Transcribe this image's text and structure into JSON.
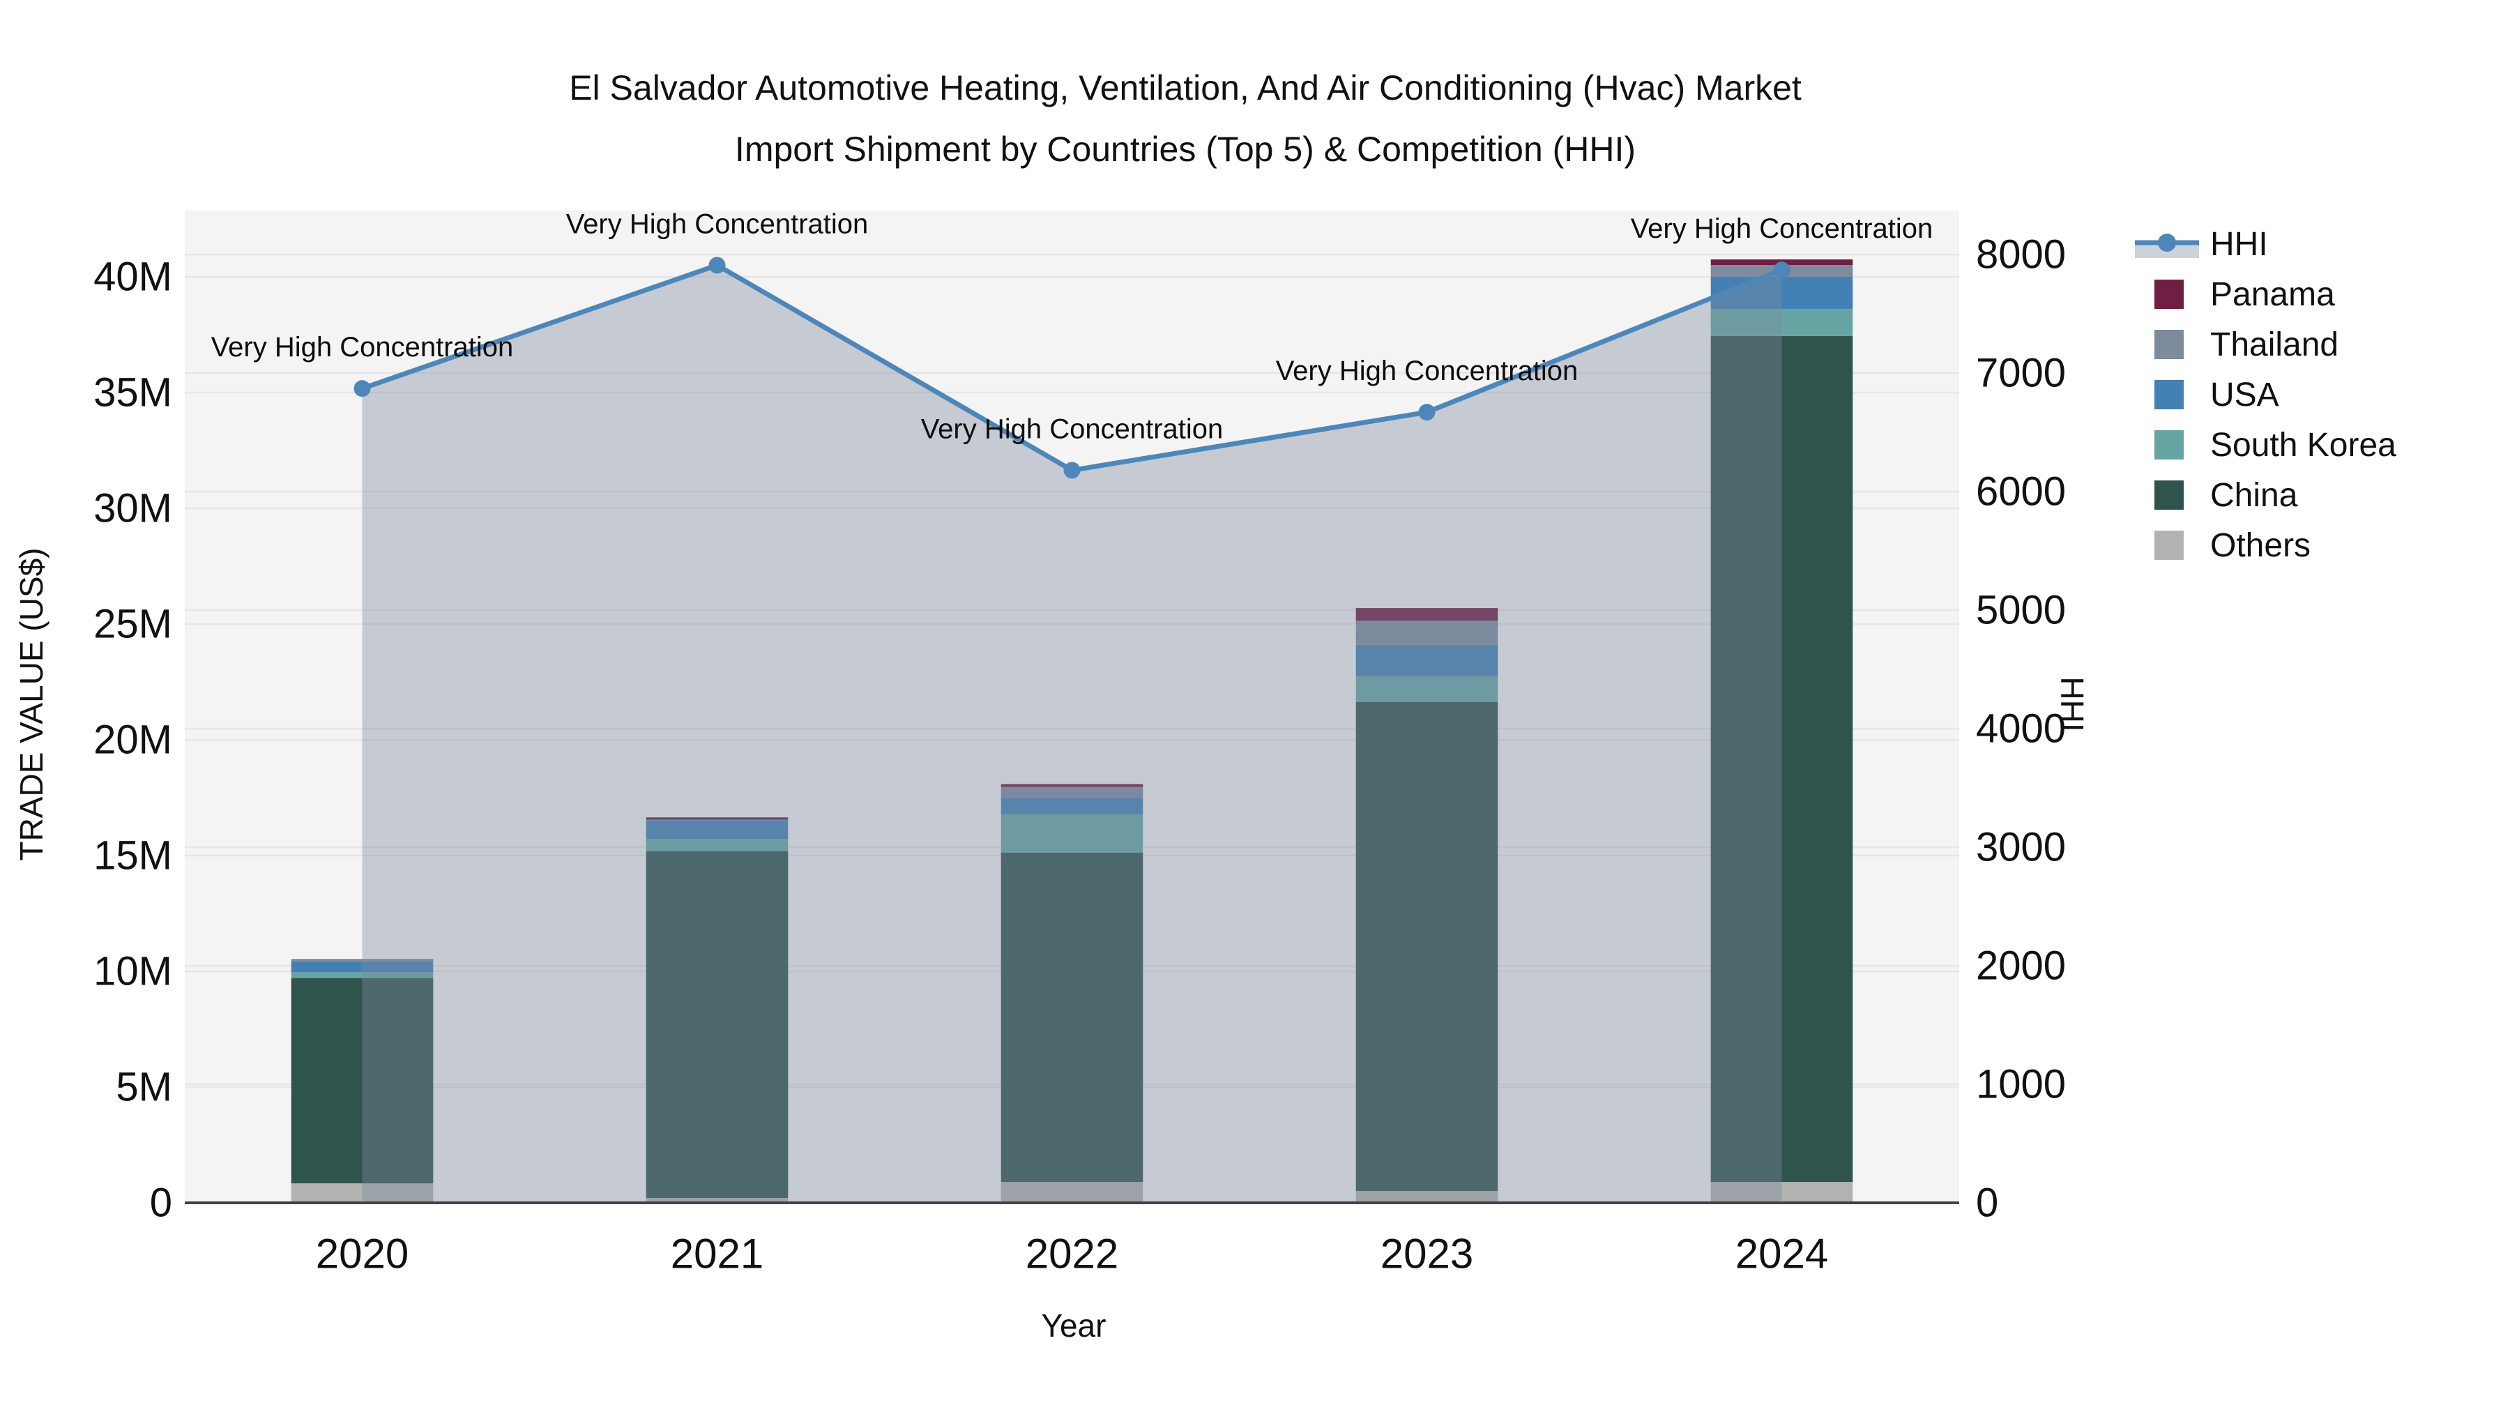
{
  "title": {
    "line1": "El Salvador Automotive Heating, Ventilation, And Air Conditioning (Hvac) Market",
    "line2": "Import Shipment by Countries (Top 5) & Competition (HHI)"
  },
  "chart_data": {
    "type": "combo: stacked bar (trade value) + line with area fill (HHI)",
    "categories": [
      "2020",
      "2021",
      "2022",
      "2023",
      "2024"
    ],
    "bar_series": [
      {
        "name": "Others",
        "color": "#b3b4b2",
        "values_musd": [
          0.84,
          0.21,
          0.9,
          0.51,
          0.9
        ]
      },
      {
        "name": "China",
        "color": "#2f544e",
        "values_musd": [
          8.87,
          14.97,
          14.22,
          21.12,
          36.54
        ]
      },
      {
        "name": "South Korea",
        "color": "#66a5a3",
        "values_musd": [
          0.25,
          0.54,
          1.66,
          1.11,
          1.17
        ]
      },
      {
        "name": "USA",
        "color": "#4381b5",
        "values_musd": [
          0.47,
          0.81,
          0.73,
          1.36,
          1.39
        ]
      },
      {
        "name": "Thailand",
        "color": "#7c8b9d",
        "values_musd": [
          0.05,
          0.02,
          0.45,
          1.05,
          0.51
        ]
      },
      {
        "name": "Panama",
        "color": "#6e1f42",
        "values_musd": [
          0.03,
          0.1,
          0.13,
          0.54,
          0.24
        ]
      }
    ],
    "bar_totals_musd": [
      10.51,
      16.65,
      18.09,
      25.69,
      40.75
    ],
    "line_series": {
      "name": "HHI",
      "color": "#4d87b9",
      "fill_color": "rgba(124,136,158,0.38)",
      "values": [
        6870,
        7910,
        6180,
        6670,
        7870
      ],
      "point_annotations": [
        "Very High Concentration",
        "Very High Concentration",
        "Very High Concentration",
        "Very High Concentration",
        "Very High Concentration"
      ]
    },
    "x_axis": {
      "label": "Year"
    },
    "y_left": {
      "label": "TRADE VALUE (US$)",
      "tick_values": [
        0,
        5,
        10,
        15,
        20,
        25,
        30,
        35,
        40
      ],
      "tick_labels": [
        "0",
        "5M",
        "10M",
        "15M",
        "20M",
        "25M",
        "30M",
        "35M",
        "40M"
      ],
      "max": 42.86
    },
    "y_right": {
      "label": "HHI",
      "tick_values": [
        0,
        1000,
        2000,
        3000,
        4000,
        5000,
        6000,
        7000,
        8000
      ],
      "tick_labels": [
        "0",
        "1000",
        "2000",
        "3000",
        "4000",
        "5000",
        "6000",
        "7000",
        "8000"
      ],
      "max": 8371
    },
    "legend": [
      {
        "label": "HHI",
        "color": "#4d87b9",
        "type": "line",
        "band_color": "#ccd2da"
      },
      {
        "label": "Panama",
        "color": "#6e1f42",
        "type": "square"
      },
      {
        "label": "Thailand",
        "color": "#7c8b9d",
        "type": "square"
      },
      {
        "label": "USA",
        "color": "#4381b5",
        "type": "square"
      },
      {
        "label": "South Korea",
        "color": "#66a5a3",
        "type": "square"
      },
      {
        "label": "China",
        "color": "#2f544e",
        "type": "square"
      },
      {
        "label": "Others",
        "color": "#b3b4b2",
        "type": "square"
      }
    ],
    "colors": {
      "plot_bg": "#f4f4f4",
      "grid": "#e6e6e6",
      "axis_line": "#444444",
      "text": "#111111"
    }
  }
}
